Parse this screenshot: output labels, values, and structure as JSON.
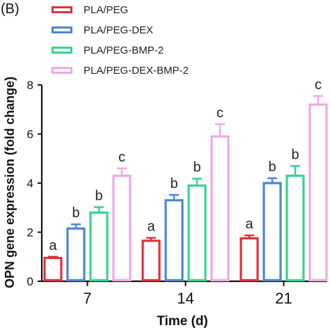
{
  "panel_label": "(B)",
  "chart_data": {
    "type": "bar",
    "xlabel": "Time (d)",
    "ylabel": "OPN gene expression (fold change)",
    "categories": [
      "7",
      "14",
      "21"
    ],
    "ylim": [
      0,
      8
    ],
    "yticks": [
      0,
      2,
      4,
      6,
      8
    ],
    "grid": false,
    "legend": "top-left",
    "series": [
      {
        "name": "PLA/PEG",
        "color": "#e0313a",
        "values": [
          0.95,
          1.65,
          1.75
        ],
        "errors": [
          0.05,
          0.12,
          0.12
        ],
        "labels": [
          "a",
          "a",
          "a"
        ]
      },
      {
        "name": "PLA/PEG-DEX",
        "color": "#4a86d8",
        "values": [
          2.15,
          3.3,
          4.0
        ],
        "errors": [
          0.17,
          0.22,
          0.2
        ],
        "labels": [
          "b",
          "b",
          "b"
        ]
      },
      {
        "name": "PLA/PEG-BMP-2",
        "color": "#36d48f",
        "values": [
          2.8,
          3.9,
          4.3
        ],
        "errors": [
          0.22,
          0.28,
          0.4
        ],
        "labels": [
          "b",
          "b",
          "b"
        ]
      },
      {
        "name": "PLA/PEG-DEX-BMP-2",
        "color": "#f0a8e6",
        "values": [
          4.3,
          5.9,
          7.2
        ],
        "errors": [
          0.3,
          0.5,
          0.35
        ],
        "labels": [
          "c",
          "c",
          "c"
        ]
      }
    ]
  }
}
